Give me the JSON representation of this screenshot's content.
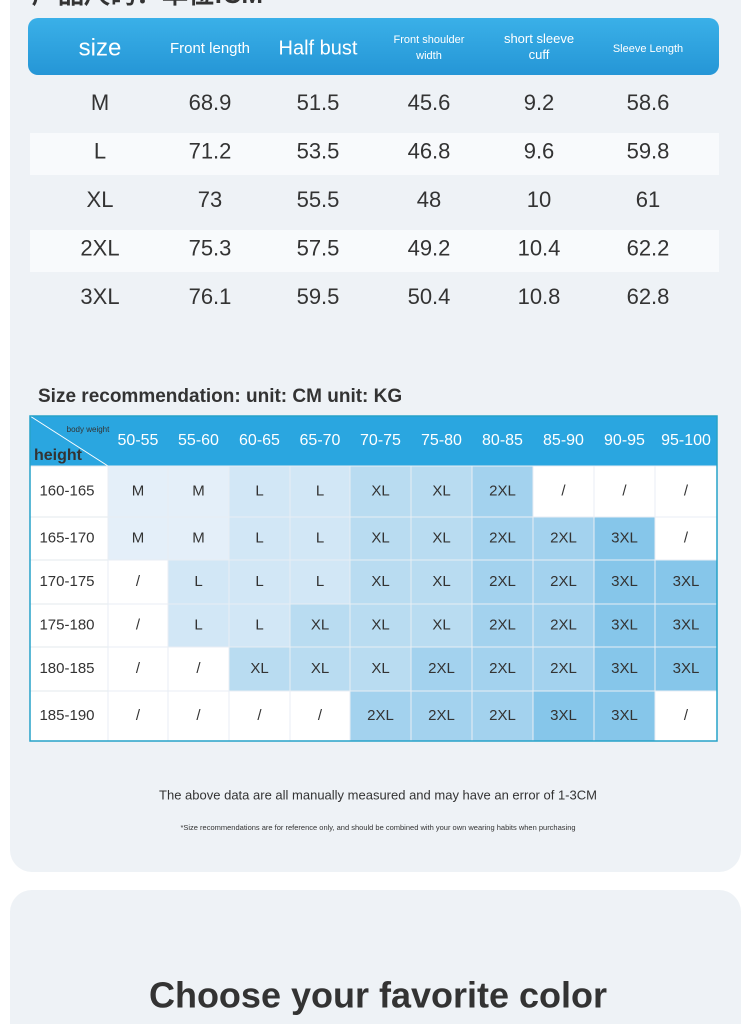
{
  "heading": "产品尺码：单位:CM",
  "size_table": {
    "columns": [
      "size",
      "Front length",
      "Half bust",
      "Front shoulder width",
      "short sleeve cuff",
      "Sleeve Length"
    ],
    "rows": [
      [
        "M",
        "68.9",
        "51.5",
        "45.6",
        "9.2",
        "58.6"
      ],
      [
        "L",
        "71.2",
        "53.5",
        "46.8",
        "9.6",
        "59.8"
      ],
      [
        "XL",
        "73",
        "55.5",
        "48",
        "10",
        "61"
      ],
      [
        "2XL",
        "75.3",
        "57.5",
        "49.2",
        "10.4",
        "62.2"
      ],
      [
        "3XL",
        "76.1",
        "59.5",
        "50.4",
        "10.8",
        "62.8"
      ]
    ]
  },
  "recommendation": {
    "title": "Size recommendation: unit: CM unit: KG",
    "corner_top": "body weight",
    "corner_bottom": "height",
    "columns": [
      "50-55",
      "55-60",
      "60-65",
      "65-70",
      "70-75",
      "75-80",
      "80-85",
      "85-90",
      "90-95",
      "95-100"
    ],
    "rows": [
      {
        "height": "160-165",
        "cells": [
          "M",
          "M",
          "L",
          "L",
          "XL",
          "XL",
          "2XL",
          "/",
          "/",
          "/"
        ]
      },
      {
        "height": "165-170",
        "cells": [
          "M",
          "M",
          "L",
          "L",
          "XL",
          "XL",
          "2XL",
          "2XL",
          "3XL",
          "/"
        ]
      },
      {
        "height": "170-175",
        "cells": [
          "/",
          "L",
          "L",
          "L",
          "XL",
          "XL",
          "2XL",
          "2XL",
          "3XL",
          "3XL"
        ]
      },
      {
        "height": "175-180",
        "cells": [
          "/",
          "L",
          "L",
          "XL",
          "XL",
          "XL",
          "2XL",
          "2XL",
          "3XL",
          "3XL"
        ]
      },
      {
        "height": "180-185",
        "cells": [
          "/",
          "/",
          "XL",
          "XL",
          "XL",
          "2XL",
          "2XL",
          "2XL",
          "3XL",
          "3XL"
        ]
      },
      {
        "height": "185-190",
        "cells": [
          "/",
          "/",
          "/",
          "/",
          "2XL",
          "2XL",
          "2XL",
          "3XL",
          "3XL",
          "/"
        ]
      }
    ]
  },
  "notes": [
    "The above data are all manually measured and may have an error of 1-3CM",
    "*Size recommendations are for reference only, and should be combined with your own wearing habits when purchasing"
  ],
  "color_section": {
    "title": "Choose your favorite color"
  }
}
